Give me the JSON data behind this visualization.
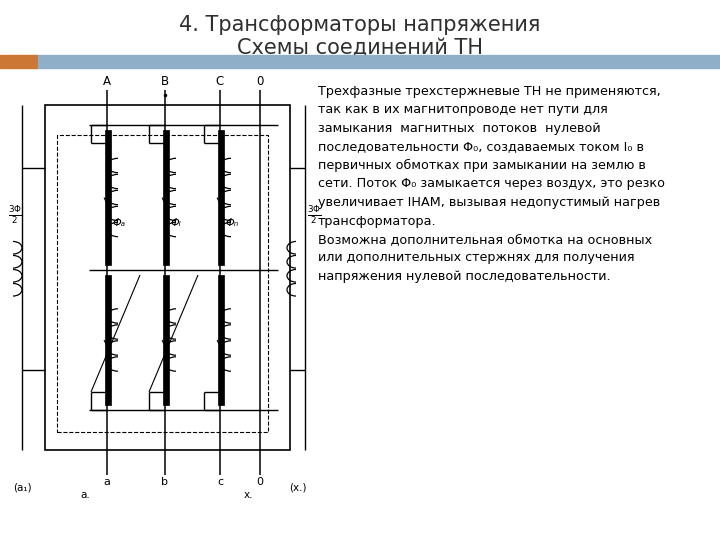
{
  "title_line1": "4. Трансформаторы напряжения",
  "title_line2": "Схемы соединений ТН",
  "title_fontsize": 15,
  "title_color": "#2f2f2f",
  "orange_color": "#cc7733",
  "blue_color": "#8fafc8",
  "text_fontsize": 9.2,
  "bg_color": "#ffffff",
  "line_color": "#000000",
  "text_lines_p1": [
    "Трехфазные трехстержневые ТН не применяются,",
    "так как в их магнитопроводе нет пути для",
    "замыкания  магнитных  потоков  нулевой",
    "последовательности Φ₀, создаваемых током I₀ в",
    "первичных обмотках при замыкании на землю в",
    "сети. Поток Φ₀ замыкается через воздух, это резко",
    "увеличивает IНАМ, вызывая недопустимый нагрев",
    "трансформатора."
  ],
  "text_lines_p2": [
    "Возможна дополнительная обмотка на основных",
    "или дополнительных стержнях для получения",
    "напряжения нулевой последовательности."
  ]
}
